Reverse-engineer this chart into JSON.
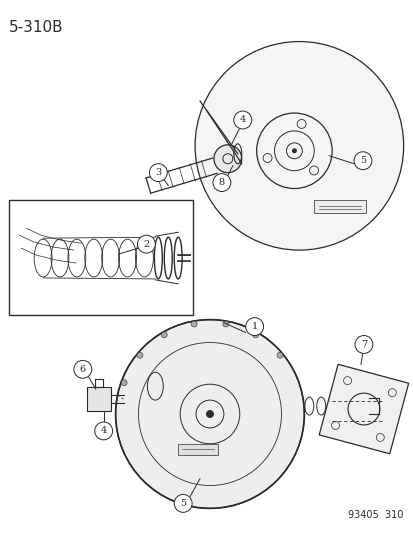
{
  "title": "5-310B",
  "footer": "93405  310",
  "bg_color": "#ffffff",
  "line_color": "#2a2a2a",
  "title_fontsize": 11,
  "footer_fontsize": 7,
  "fig_w": 4.14,
  "fig_h": 5.33,
  "dpi": 100
}
